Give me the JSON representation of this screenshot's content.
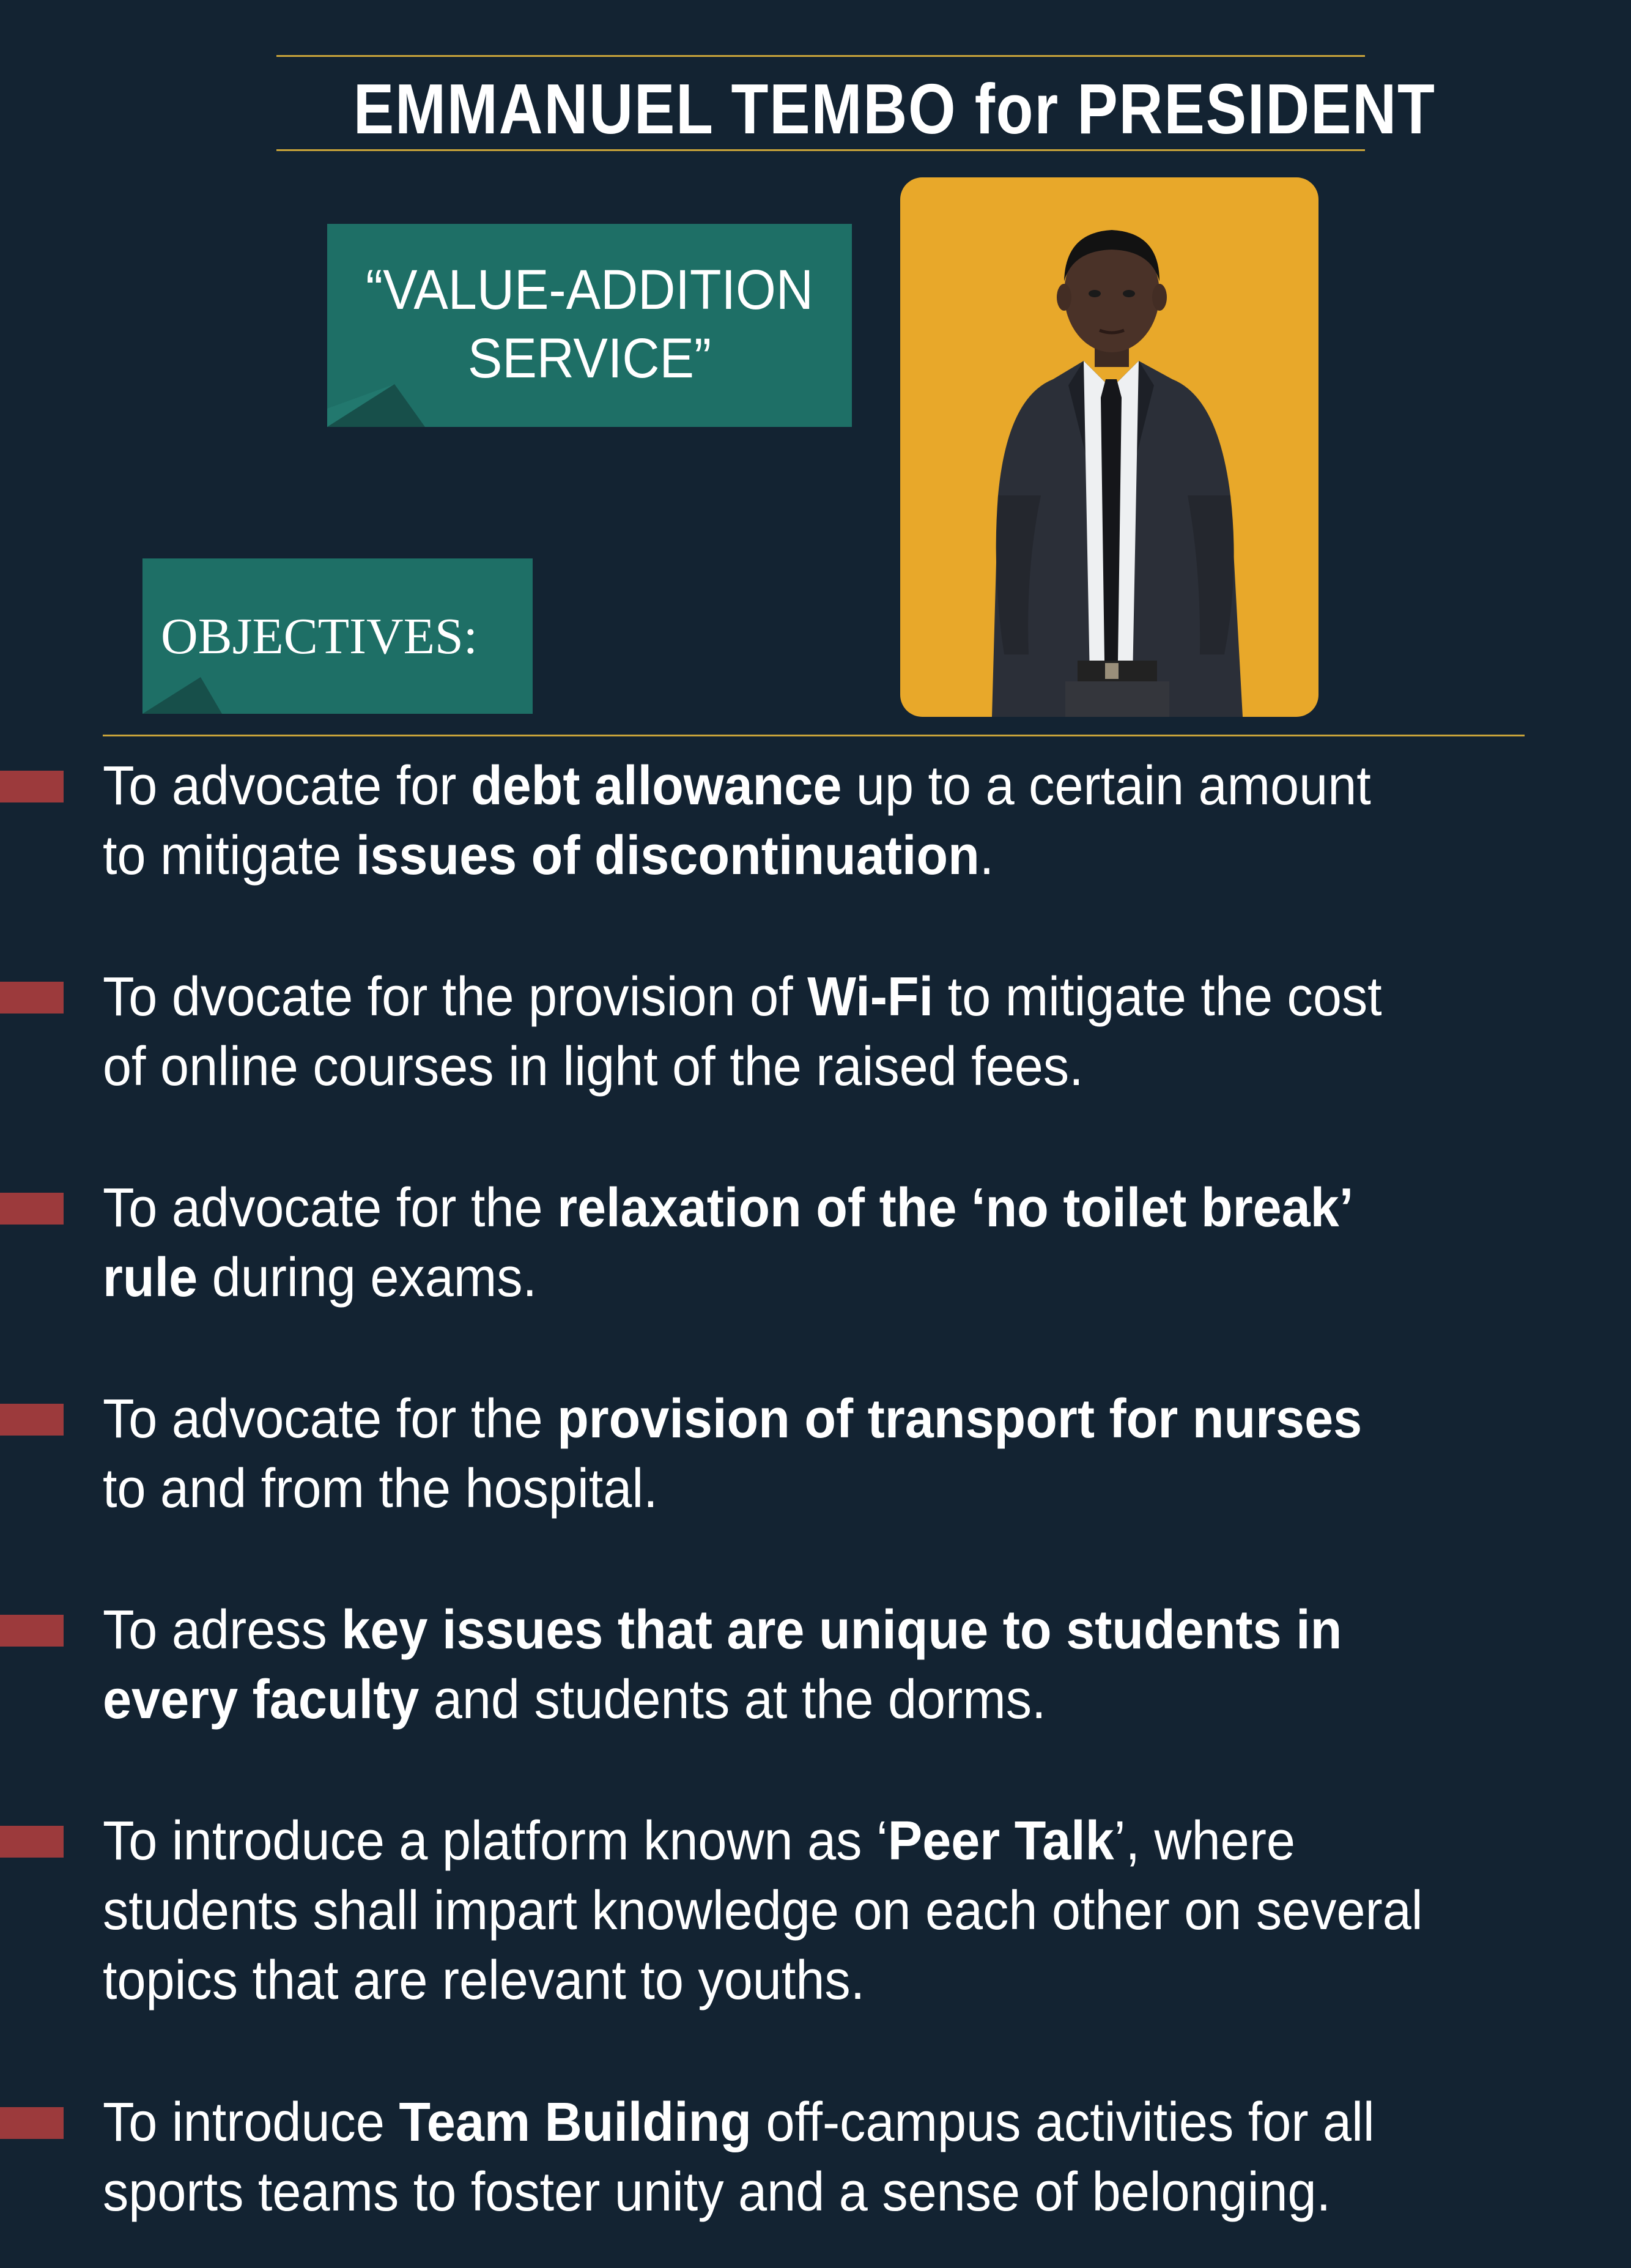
{
  "header": {
    "title": "EMMANUEL TEMBO for PRESIDENT"
  },
  "slogan": {
    "text": "“VALUE-ADDITION\nSERVICE”"
  },
  "objectives_label": "OBJECTIVES:",
  "photo": {
    "description_icon": "candidate-photo"
  },
  "colors": {
    "background": "#132332",
    "gold": "#c9a43a",
    "teal": "#1e6f66",
    "photo_bg": "#e8a82a",
    "bullet": "#9c3a3c"
  },
  "objectives": [
    {
      "lines": [
        [
          [
            "To advocate for ",
            false
          ],
          [
            "debt allowance",
            true
          ],
          [
            " up to a certain amount",
            false
          ]
        ],
        [
          [
            "to mitigate ",
            false
          ],
          [
            "issues of discontinuation",
            true
          ],
          [
            ".",
            false
          ]
        ]
      ]
    },
    {
      "lines": [
        [
          [
            "To dvocate for the provision of ",
            false
          ],
          [
            "Wi-Fi",
            true
          ],
          [
            " to mitigate the cost",
            false
          ]
        ],
        [
          [
            "of online courses in light of the raised fees.",
            false
          ]
        ]
      ]
    },
    {
      "lines": [
        [
          [
            "To advocate for the ",
            false
          ],
          [
            "relaxation of the ‘no toilet break’",
            true
          ]
        ],
        [
          [
            "rule",
            true
          ],
          [
            " during exams.",
            false
          ]
        ]
      ]
    },
    {
      "lines": [
        [
          [
            "To advocate for the ",
            false
          ],
          [
            "provision of transport for nurses",
            true
          ]
        ],
        [
          [
            "to and from the hospital.",
            false
          ]
        ]
      ]
    },
    {
      "lines": [
        [
          [
            "To adress ",
            false
          ],
          [
            "key issues that are unique to students in",
            true
          ]
        ],
        [
          [
            "every faculty",
            true
          ],
          [
            " and students at the dorms.",
            false
          ]
        ]
      ]
    },
    {
      "lines": [
        [
          [
            "To introduce a platform known as ‘",
            false
          ],
          [
            "Peer Talk",
            true
          ],
          [
            "’, where",
            false
          ]
        ],
        [
          [
            "students shall impart knowledge on each other on several",
            false
          ]
        ],
        [
          [
            "topics that are relevant to youths.",
            false
          ]
        ]
      ]
    },
    {
      "lines": [
        [
          [
            "To introduce ",
            false
          ],
          [
            "Team Building",
            true
          ],
          [
            " off-campus activities for all",
            false
          ]
        ],
        [
          [
            "sports teams to foster unity and a sense of belonging.",
            false
          ]
        ]
      ]
    }
  ]
}
